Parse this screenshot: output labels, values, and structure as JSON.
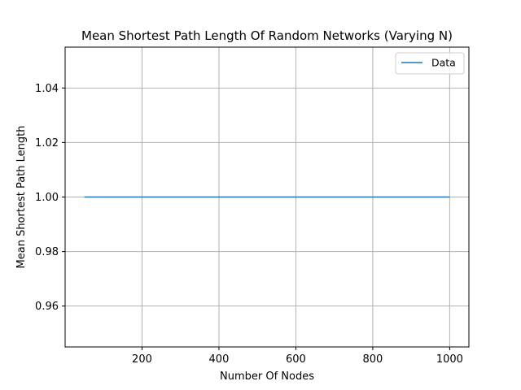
{
  "chart_data": {
    "type": "line",
    "title": "Mean Shortest Path Length Of Random Networks (Varying N)",
    "xlabel": "Number Of Nodes",
    "ylabel": "Mean Shortest Path Length",
    "xlim": [
      0,
      1050
    ],
    "ylim": [
      0.945,
      1.055
    ],
    "xticks": [
      200,
      400,
      600,
      800,
      1000
    ],
    "xtick_labels": [
      "200",
      "400",
      "600",
      "800",
      "1000"
    ],
    "yticks": [
      0.96,
      0.98,
      1.0,
      1.02,
      1.04
    ],
    "ytick_labels": [
      "0.96",
      "0.98",
      "1.00",
      "1.02",
      "1.04"
    ],
    "grid": true,
    "legend_position": "top-right",
    "series": [
      {
        "name": "Data",
        "color": "#1f77b4",
        "x": [
          50,
          100,
          200,
          300,
          400,
          500,
          600,
          700,
          800,
          900,
          1000
        ],
        "y": [
          1.0,
          1.0,
          1.0,
          1.0,
          1.0,
          1.0,
          1.0,
          1.0,
          1.0,
          1.0,
          1.0
        ]
      }
    ]
  }
}
